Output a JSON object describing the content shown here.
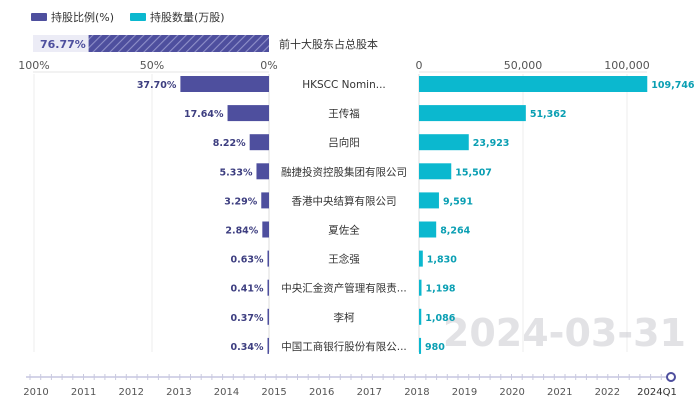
{
  "legend": [
    {
      "label": "持股比例(%)",
      "color": "#4e4f9e"
    },
    {
      "label": "持股数量(万股)",
      "color": "#0bb8cf"
    }
  ],
  "summary": {
    "value": 76.77,
    "label": "76.77%",
    "caption": "前十大股东占总股本"
  },
  "watermark": "2024-03-31",
  "chart_data": {
    "type": "bar",
    "categories": [
      "HKSCC Nomin...",
      "王传福",
      "吕向阳",
      "融捷投资控股集团有限公司",
      "香港中央结算有限公司",
      "夏佐全",
      "王念强",
      "中央汇金资产管理有限责...",
      "李柯",
      "中国工商银行股份有限公..."
    ],
    "series": [
      {
        "name": "持股比例(%)",
        "values": [
          37.7,
          17.64,
          8.22,
          5.33,
          3.29,
          2.84,
          0.63,
          0.41,
          0.37,
          0.34
        ],
        "labels": [
          "37.70%",
          "17.64%",
          "8.22%",
          "5.33%",
          "3.29%",
          "2.84%",
          "0.63%",
          "0.41%",
          "0.37%",
          "0.34%"
        ]
      },
      {
        "name": "持股数量(万股)",
        "values": [
          109746,
          51362,
          23923,
          15507,
          9591,
          8264,
          1830,
          1198,
          1086,
          980
        ],
        "labels": [
          "109,746",
          "51,362",
          "23,923",
          "15,507",
          "9,591",
          "8,264",
          "1,830",
          "1,198",
          "1,086",
          "980"
        ]
      }
    ],
    "left_axis": {
      "ticks": [
        "100%",
        "50%",
        "0%"
      ],
      "range": [
        0,
        100
      ]
    },
    "right_axis": {
      "ticks": [
        "0",
        "50,000",
        "100,000"
      ],
      "range": [
        0,
        110000
      ]
    }
  },
  "timeline": {
    "years": [
      "2010",
      "2011",
      "2012",
      "2013",
      "2014",
      "2015",
      "2016",
      "2017",
      "2018",
      "2019",
      "2020",
      "2021",
      "2022",
      "2024Q1"
    ],
    "selected": "2024Q1"
  }
}
